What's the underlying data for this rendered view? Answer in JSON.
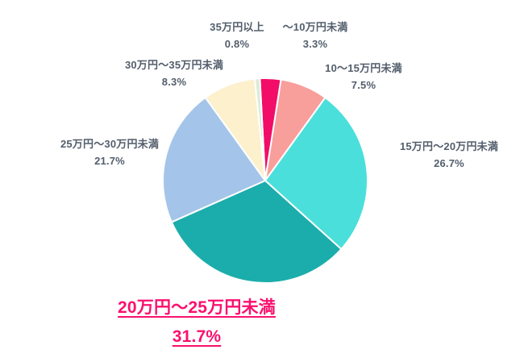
{
  "chart_data": {
    "type": "pie",
    "title": "",
    "categories": [
      "～10万円未満",
      "10～15万円未満",
      "15万円～20万円未満",
      "20万円～25万円未満",
      "25万円～30万円未満",
      "30万円～35万円未満",
      "35万円以上"
    ],
    "values": [
      3.3,
      7.5,
      26.7,
      31.7,
      21.7,
      8.3,
      0.8
    ],
    "value_labels": [
      "3.3%",
      "7.5%",
      "26.7%",
      "31.7%",
      "21.7%",
      "8.3%",
      "0.8%"
    ],
    "colors": [
      "#F20D68",
      "#F89E9B",
      "#4ADFDB",
      "#1BADAB",
      "#A4C5E9",
      "#FCF0CD",
      "#DCEBD7"
    ],
    "start_angle_deg": -3,
    "direction": "clockwise",
    "slice_border_color": "#FFFFFF",
    "label_color": "#535E6C",
    "highlight_index": 3,
    "highlight_color": "#FB106E",
    "legend_position": "none"
  }
}
